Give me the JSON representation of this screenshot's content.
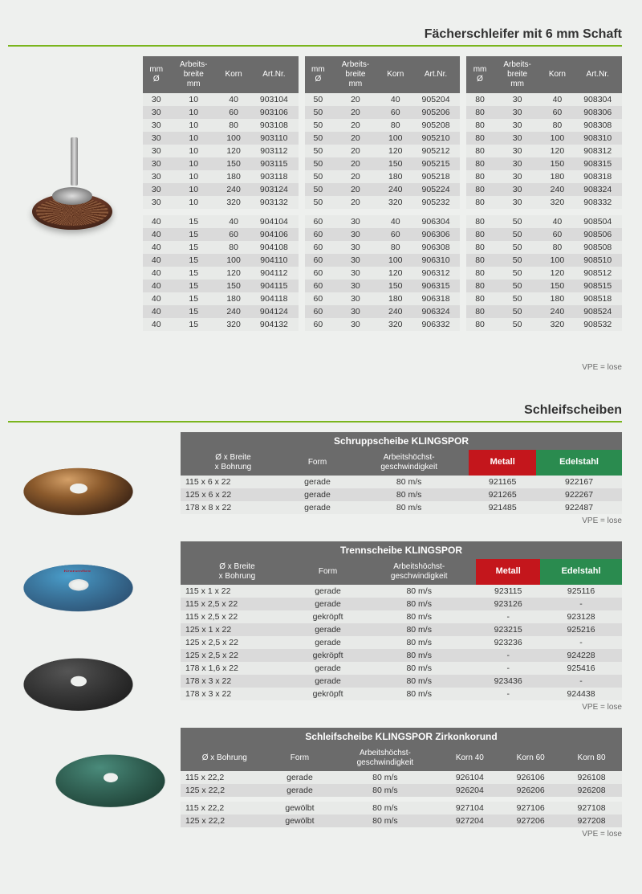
{
  "section1_title": "Fächerschleifer mit 6 mm Schaft",
  "top_headers": [
    "mm\nØ",
    "Arbeits-\nbreite\nmm",
    "Korn",
    "Art.Nr."
  ],
  "vpe_text": "VPE = lose",
  "top_tables": [
    [
      [
        "30",
        "10",
        "40",
        "903104"
      ],
      [
        "30",
        "10",
        "60",
        "903106"
      ],
      [
        "30",
        "10",
        "80",
        "903108"
      ],
      [
        "30",
        "10",
        "100",
        "903110"
      ],
      [
        "30",
        "10",
        "120",
        "903112"
      ],
      [
        "30",
        "10",
        "150",
        "903115"
      ],
      [
        "30",
        "10",
        "180",
        "903118"
      ],
      [
        "30",
        "10",
        "240",
        "903124"
      ],
      [
        "30",
        "10",
        "320",
        "903132"
      ],
      null,
      [
        "40",
        "15",
        "40",
        "904104"
      ],
      [
        "40",
        "15",
        "60",
        "904106"
      ],
      [
        "40",
        "15",
        "80",
        "904108"
      ],
      [
        "40",
        "15",
        "100",
        "904110"
      ],
      [
        "40",
        "15",
        "120",
        "904112"
      ],
      [
        "40",
        "15",
        "150",
        "904115"
      ],
      [
        "40",
        "15",
        "180",
        "904118"
      ],
      [
        "40",
        "15",
        "240",
        "904124"
      ],
      [
        "40",
        "15",
        "320",
        "904132"
      ]
    ],
    [
      [
        "50",
        "20",
        "40",
        "905204"
      ],
      [
        "50",
        "20",
        "60",
        "905206"
      ],
      [
        "50",
        "20",
        "80",
        "905208"
      ],
      [
        "50",
        "20",
        "100",
        "905210"
      ],
      [
        "50",
        "20",
        "120",
        "905212"
      ],
      [
        "50",
        "20",
        "150",
        "905215"
      ],
      [
        "50",
        "20",
        "180",
        "905218"
      ],
      [
        "50",
        "20",
        "240",
        "905224"
      ],
      [
        "50",
        "20",
        "320",
        "905232"
      ],
      null,
      [
        "60",
        "30",
        "40",
        "906304"
      ],
      [
        "60",
        "30",
        "60",
        "906306"
      ],
      [
        "60",
        "30",
        "80",
        "906308"
      ],
      [
        "60",
        "30",
        "100",
        "906310"
      ],
      [
        "60",
        "30",
        "120",
        "906312"
      ],
      [
        "60",
        "30",
        "150",
        "906315"
      ],
      [
        "60",
        "30",
        "180",
        "906318"
      ],
      [
        "60",
        "30",
        "240",
        "906324"
      ],
      [
        "60",
        "30",
        "320",
        "906332"
      ]
    ],
    [
      [
        "80",
        "30",
        "40",
        "908304"
      ],
      [
        "80",
        "30",
        "60",
        "908306"
      ],
      [
        "80",
        "30",
        "80",
        "908308"
      ],
      [
        "80",
        "30",
        "100",
        "908310"
      ],
      [
        "80",
        "30",
        "120",
        "908312"
      ],
      [
        "80",
        "30",
        "150",
        "908315"
      ],
      [
        "80",
        "30",
        "180",
        "908318"
      ],
      [
        "80",
        "30",
        "240",
        "908324"
      ],
      [
        "80",
        "30",
        "320",
        "908332"
      ],
      null,
      [
        "80",
        "50",
        "40",
        "908504"
      ],
      [
        "80",
        "50",
        "60",
        "908506"
      ],
      [
        "80",
        "50",
        "80",
        "908508"
      ],
      [
        "80",
        "50",
        "100",
        "908510"
      ],
      [
        "80",
        "50",
        "120",
        "908512"
      ],
      [
        "80",
        "50",
        "150",
        "908515"
      ],
      [
        "80",
        "50",
        "180",
        "908518"
      ],
      [
        "80",
        "50",
        "240",
        "908524"
      ],
      [
        "80",
        "50",
        "320",
        "908532"
      ]
    ]
  ],
  "section2_title": "Schleifscheiben",
  "schrupp": {
    "title": "Schruppscheibe KLINGSPOR",
    "headers": [
      "Ø x Breite\nx Bohrung",
      "Form",
      "Arbeitshöchst-\ngeschwindigkeit",
      "Metall",
      "Edelstahl"
    ],
    "rows": [
      [
        "115 x 6 x 22",
        "gerade",
        "80 m/s",
        "921165",
        "922167"
      ],
      [
        "125 x 6 x 22",
        "gerade",
        "80 m/s",
        "921265",
        "922267"
      ],
      [
        "178 x 8 x 22",
        "gerade",
        "80 m/s",
        "921485",
        "922487"
      ]
    ]
  },
  "trenn": {
    "title": "Trennscheibe KLINGSPOR",
    "headers": [
      "Ø x Breite\nx Bohrung",
      "Form",
      "Arbeitshöchst-\ngeschwindigkeit",
      "Metall",
      "Edelstahl"
    ],
    "rows": [
      [
        "115 x 1 x 22",
        "gerade",
        "80 m/s",
        "923115",
        "925116"
      ],
      [
        "115 x 2,5 x 22",
        "gerade",
        "80 m/s",
        "923126",
        "-"
      ],
      [
        "115 x 2,5 x 22",
        "gekröpft",
        "80 m/s",
        "-",
        "923128"
      ],
      [
        "125 x 1 x 22",
        "gerade",
        "80 m/s",
        "923215",
        "925216"
      ],
      [
        "125 x 2,5 x 22",
        "gerade",
        "80 m/s",
        "923236",
        "-"
      ],
      [
        "125 x 2,5 x 22",
        "gekröpft",
        "80 m/s",
        "-",
        "924228"
      ],
      [
        "178 x 1,6 x 22",
        "gerade",
        "80 m/s",
        "-",
        "925416"
      ],
      [
        "178 x 3 x 22",
        "gerade",
        "80 m/s",
        "923436",
        "-"
      ],
      [
        "178 x 3 x 22",
        "gekröpft",
        "80 m/s",
        "-",
        "924438"
      ]
    ]
  },
  "schleif": {
    "title": "Schleifscheibe KLINGSPOR Zirkonkorund",
    "headers": [
      "Ø x Bohrung",
      "Form",
      "Arbeitshöchst-\ngeschwindigkeit",
      "Korn 40",
      "Korn 60",
      "Korn 80"
    ],
    "rows1": [
      [
        "115 x 22,2",
        "gerade",
        "80 m/s",
        "926104",
        "926106",
        "926108"
      ],
      [
        "125 x 22,2",
        "gerade",
        "80 m/s",
        "926204",
        "926206",
        "926208"
      ]
    ],
    "rows2": [
      [
        "115 x 22,2",
        "gewölbt",
        "80 m/s",
        "927104",
        "927106",
        "927108"
      ],
      [
        "125 x 22,2",
        "gewölbt",
        "80 m/s",
        "927204",
        "927206",
        "927208"
      ]
    ]
  }
}
